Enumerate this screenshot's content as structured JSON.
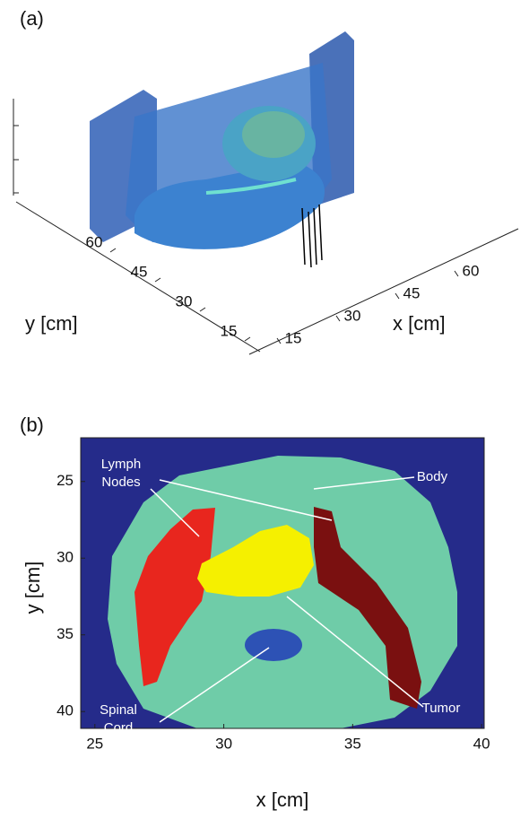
{
  "panels": [
    {
      "label": "(a)",
      "x_axis": {
        "label": "x [cm]",
        "ticks": [
          15,
          30,
          45,
          60
        ]
      },
      "y_axis": {
        "label": "y [cm]",
        "ticks": [
          15,
          30,
          45,
          60
        ]
      }
    },
    {
      "label": "(b)",
      "xlim": [
        24.45,
        40.1
      ],
      "ylim": [
        22.15,
        41.1
      ],
      "x_axis": {
        "label": "x [cm]",
        "ticks": [
          25,
          30,
          35,
          40
        ]
      },
      "y_axis": {
        "label": "y [cm]",
        "ticks": [
          25,
          30,
          35,
          40
        ]
      },
      "annotations": [
        {
          "lines": [
            "Lymph",
            "Nodes"
          ]
        },
        {
          "lines": [
            "Body"
          ]
        },
        {
          "lines": [
            "Tumor"
          ]
        },
        {
          "lines": [
            "Spinal",
            "Cord"
          ]
        }
      ]
    }
  ]
}
